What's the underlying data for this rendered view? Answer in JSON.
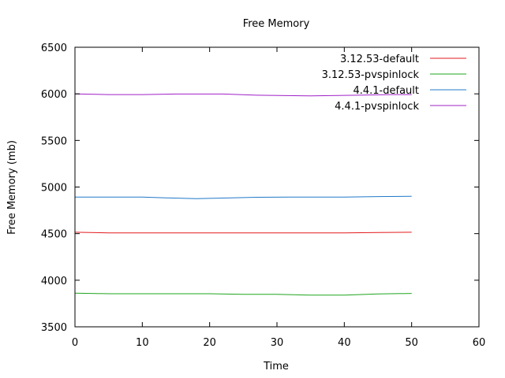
{
  "chart_data": {
    "type": "line",
    "title": "Free Memory",
    "xlabel": "Time",
    "ylabel": "Free Memory (mb)",
    "xlim": [
      0,
      60
    ],
    "ylim": [
      3500,
      6500
    ],
    "xticks": [
      0,
      10,
      20,
      30,
      40,
      50,
      60
    ],
    "yticks": [
      3500,
      4000,
      4500,
      5000,
      5500,
      6000,
      6500
    ],
    "grid": false,
    "legend_position": "top-right",
    "series": [
      {
        "name": "3.12.53-default",
        "color": "#e41a1c",
        "x": [
          0,
          5,
          10,
          15,
          20,
          25,
          30,
          35,
          40,
          45,
          50
        ],
        "y": [
          4515,
          4508,
          4508,
          4508,
          4508,
          4508,
          4508,
          4508,
          4508,
          4512,
          4515
        ]
      },
      {
        "name": "3.12.53-pvspinlock",
        "color": "#1fa51f",
        "x": [
          0,
          5,
          10,
          15,
          20,
          25,
          30,
          35,
          40,
          45,
          50
        ],
        "y": [
          3862,
          3855,
          3855,
          3855,
          3855,
          3848,
          3848,
          3840,
          3840,
          3852,
          3858
        ]
      },
      {
        "name": "4.4.1-default",
        "color": "#1f78c8",
        "x": [
          0,
          5,
          10,
          13,
          18,
          22,
          27,
          32,
          40,
          45,
          50
        ],
        "y": [
          4892,
          4892,
          4892,
          4885,
          4875,
          4882,
          4890,
          4892,
          4892,
          4898,
          4900
        ]
      },
      {
        "name": "4.4.1-pvspinlock",
        "color": "#a020c8",
        "x": [
          0,
          5,
          10,
          15,
          22,
          27,
          35,
          42,
          47,
          50
        ],
        "y": [
          6000,
          5992,
          5992,
          5998,
          5998,
          5985,
          5978,
          5985,
          5992,
          5992
        ]
      }
    ]
  }
}
